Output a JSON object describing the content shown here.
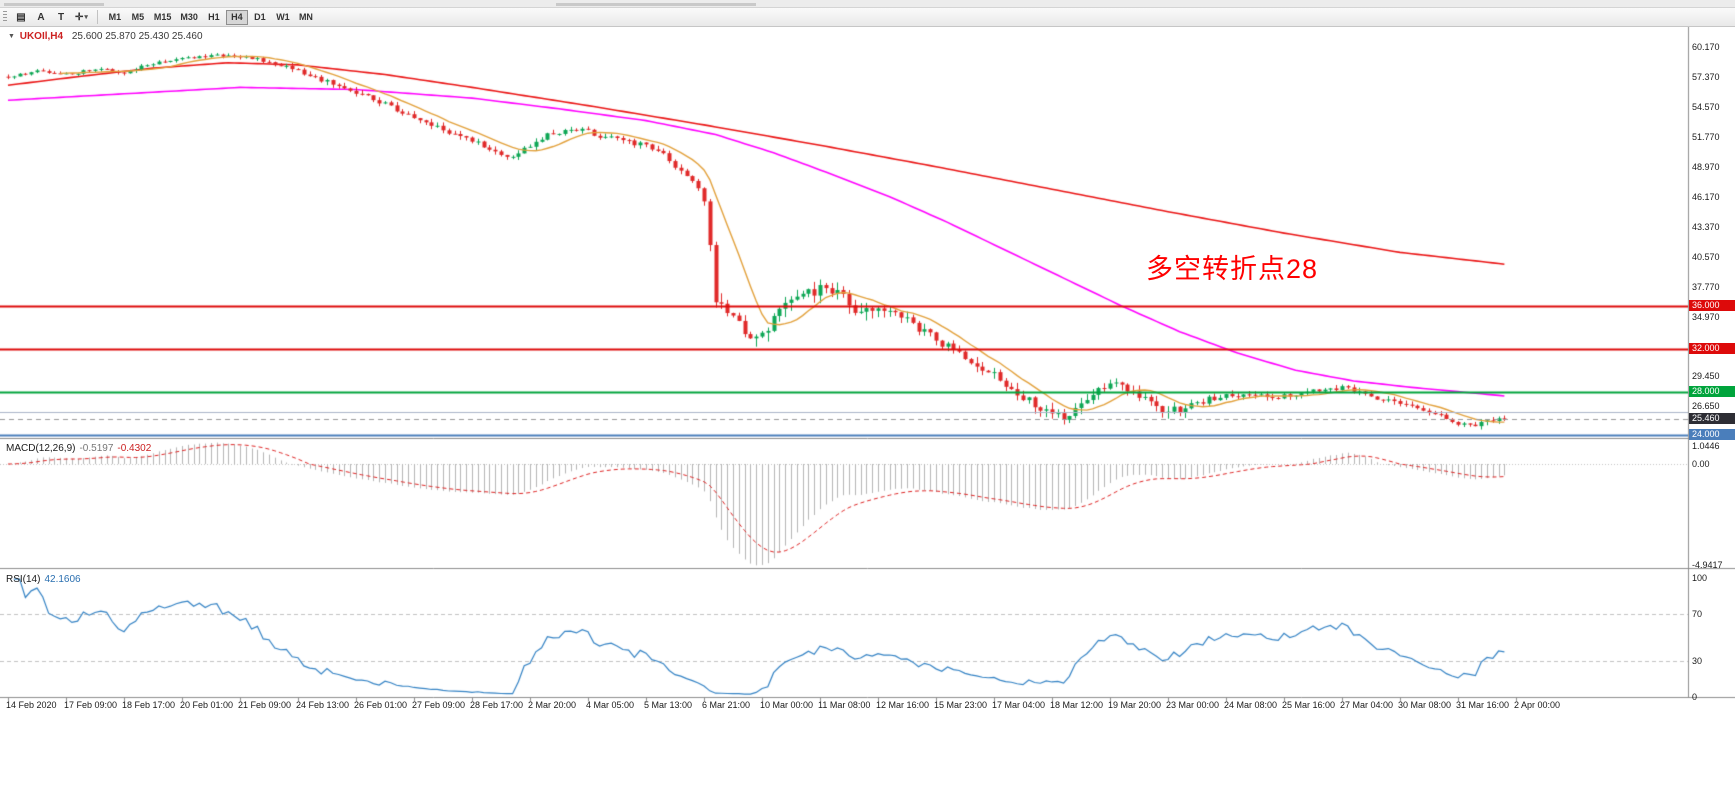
{
  "toolbar": {
    "grid_icon": "▤",
    "text_tool": "A",
    "t_tool": "T",
    "crosshair_icon": "✛",
    "dropdown_icon": "▾",
    "timeframes": [
      {
        "label": "M1",
        "active": false
      },
      {
        "label": "M5",
        "active": false
      },
      {
        "label": "M15",
        "active": false
      },
      {
        "label": "M30",
        "active": false
      },
      {
        "label": "H1",
        "active": false
      },
      {
        "label": "H4",
        "active": true
      },
      {
        "label": "D1",
        "active": false
      },
      {
        "label": "W1",
        "active": false
      },
      {
        "label": "MN",
        "active": false
      }
    ]
  },
  "chart": {
    "header": {
      "marker": "▼",
      "symbol": "UKOIl,H4",
      "ohlc": "25.600 25.870 25.430 25.460"
    },
    "annotation": {
      "text": "多空转折点28",
      "color": "#ff0000"
    },
    "price_scale": {
      "labels": [
        "60.170",
        "57.370",
        "54.570",
        "51.770",
        "48.970",
        "46.170",
        "43.370",
        "40.570",
        "37.770",
        "34.970",
        "29.450",
        "26.650"
      ],
      "badges": [
        {
          "text": "36.000",
          "price": 36.0,
          "bg": "#dd0a0a",
          "draggable": true
        },
        {
          "text": "32.000",
          "price": 32.0,
          "bg": "#dd0a0a",
          "draggable": true
        },
        {
          "text": "28.000",
          "price": 28.0,
          "bg": "#00a43c",
          "draggable": true
        },
        {
          "text": "25.460",
          "price": 25.46,
          "bg": "#2d2d34",
          "draggable": false
        },
        {
          "text": "24.000",
          "price": 24.0,
          "bg": "#4a7ebb",
          "draggable": true
        }
      ]
    },
    "macd": {
      "label": "MACD(12,26,9)",
      "value_main": "-0.5197",
      "value_signal": "-0.4302",
      "scale": [
        "1.0446",
        "0.00",
        "-4.9417"
      ]
    },
    "rsi": {
      "label": "RSI(14)",
      "value": "42.1606",
      "scale": [
        "100",
        "70",
        "30",
        "0"
      ]
    },
    "time_axis": {
      "labels": [
        "14 Feb 2020",
        "17 Feb 09:00",
        "18 Feb 17:00",
        "20 Feb 01:00",
        "21 Feb 09:00",
        "24 Feb 13:00",
        "26 Feb 01:00",
        "27 Feb 09:00",
        "28 Feb 17:00",
        "2 Mar 20:00",
        "4 Mar 05:00",
        "5 Mar 13:00",
        "6 Mar 21:00",
        "10 Mar 00:00",
        "11 Mar 08:00",
        "12 Mar 16:00",
        "15 Mar 23:00",
        "17 Mar 04:00",
        "18 Mar 12:00",
        "19 Mar 20:00",
        "23 Mar 00:00",
        "24 Mar 08:00",
        "25 Mar 16:00",
        "27 Mar 04:00",
        "30 Mar 08:00",
        "31 Mar 16:00",
        "2 Apr 00:00"
      ]
    }
  },
  "chart_data": {
    "type": "candlestick",
    "symbol": "UKOIl",
    "timeframe": "H4",
    "title": "UKOIl H4 crude oil chart with MA overlays, MACD(12,26,9) and RSI(14)",
    "current_ohlc": {
      "open": 25.6,
      "high": 25.87,
      "low": 25.43,
      "close": 25.46
    },
    "visible_price_range": [
      23.77,
      62.03
    ],
    "bars": 259,
    "last_close": 25.46,
    "time_labels_every_bars": 10,
    "colors": {
      "up": "#0ea755",
      "down": "#e02a2a",
      "ma_fast": "#e2a13c",
      "ma_mid": "#ff00ff",
      "ma_slow": "#ea1515",
      "macd_hist": "#b4b4b4",
      "macd_signal": "#dd2222",
      "rsi": "#3382c4",
      "bid_line": "#999999",
      "grid_level_red": "#dd0a0a",
      "grid_level_green": "#00a43c",
      "grid_level_blue": "#4a7ebb"
    },
    "price_path_anchors": [
      [
        0,
        57.4
      ],
      [
        5,
        57.9
      ],
      [
        10,
        57.6
      ],
      [
        15,
        58.1
      ],
      [
        20,
        57.8
      ],
      [
        24,
        58.5
      ],
      [
        28,
        58.9
      ],
      [
        33,
        59.2
      ],
      [
        38,
        59.45
      ],
      [
        43,
        59.0
      ],
      [
        48,
        58.2
      ],
      [
        53,
        57.3
      ],
      [
        58,
        56.3
      ],
      [
        63,
        55.3
      ],
      [
        68,
        54.0
      ],
      [
        73,
        52.8
      ],
      [
        79,
        51.8
      ],
      [
        84,
        50.2
      ],
      [
        87,
        49.7
      ],
      [
        90,
        51.0
      ],
      [
        94,
        52.2
      ],
      [
        99,
        52.4
      ],
      [
        104,
        51.6
      ],
      [
        109,
        51.1
      ],
      [
        113,
        50.2
      ],
      [
        117,
        48.3
      ],
      [
        120,
        46.0
      ],
      [
        122,
        36.4
      ],
      [
        125,
        34.6
      ],
      [
        128,
        33.0
      ],
      [
        131,
        34.0
      ],
      [
        134,
        35.9
      ],
      [
        138,
        37.3
      ],
      [
        141,
        37.9
      ],
      [
        144,
        36.7
      ],
      [
        147,
        35.3
      ],
      [
        151,
        35.9
      ],
      [
        155,
        34.7
      ],
      [
        159,
        33.3
      ],
      [
        163,
        31.8
      ],
      [
        167,
        30.3
      ],
      [
        171,
        29.2
      ],
      [
        175,
        27.6
      ],
      [
        179,
        26.0
      ],
      [
        182,
        25.6
      ],
      [
        185,
        26.6
      ],
      [
        188,
        28.2
      ],
      [
        191,
        29.1
      ],
      [
        194,
        28.0
      ],
      [
        197,
        26.8
      ],
      [
        200,
        26.2
      ],
      [
        203,
        26.6
      ],
      [
        207,
        27.3
      ],
      [
        211,
        27.7
      ],
      [
        215,
        27.9
      ],
      [
        219,
        27.4
      ],
      [
        223,
        27.9
      ],
      [
        227,
        28.3
      ],
      [
        231,
        28.3
      ],
      [
        235,
        27.5
      ],
      [
        239,
        27.1
      ],
      [
        243,
        26.4
      ],
      [
        247,
        25.7
      ],
      [
        250,
        25.1
      ],
      [
        253,
        24.9
      ],
      [
        255,
        25.4
      ],
      [
        258,
        25.46
      ]
    ],
    "volatility_profile": [
      [
        0,
        0.3
      ],
      [
        48,
        0.5
      ],
      [
        113,
        0.8
      ],
      [
        121,
        1.2
      ],
      [
        150,
        0.9
      ],
      [
        205,
        0.55
      ],
      [
        243,
        0.45
      ]
    ],
    "ma_fast_period": 10,
    "ma_mid_anchors": [
      [
        0,
        55.2
      ],
      [
        20,
        55.8
      ],
      [
        40,
        56.4
      ],
      [
        60,
        56.2
      ],
      [
        80,
        55.4
      ],
      [
        95,
        54.4
      ],
      [
        110,
        53.3
      ],
      [
        122,
        52.0
      ],
      [
        132,
        50.3
      ],
      [
        142,
        48.3
      ],
      [
        152,
        46.2
      ],
      [
        162,
        43.8
      ],
      [
        172,
        41.2
      ],
      [
        182,
        38.6
      ],
      [
        192,
        36.0
      ],
      [
        202,
        33.6
      ],
      [
        212,
        31.6
      ],
      [
        222,
        30.0
      ],
      [
        232,
        29.0
      ],
      [
        242,
        28.4
      ],
      [
        250,
        28.0
      ],
      [
        258,
        27.6
      ]
    ],
    "ma_slow_anchors": [
      [
        0,
        56.6
      ],
      [
        12,
        57.4
      ],
      [
        25,
        58.2
      ],
      [
        38,
        58.7
      ],
      [
        50,
        58.5
      ],
      [
        65,
        57.6
      ],
      [
        80,
        56.4
      ],
      [
        100,
        54.7
      ],
      [
        120,
        52.9
      ],
      [
        140,
        51.0
      ],
      [
        160,
        49.0
      ],
      [
        180,
        46.9
      ],
      [
        200,
        44.8
      ],
      [
        220,
        42.8
      ],
      [
        240,
        41.0
      ],
      [
        258,
        39.9
      ]
    ],
    "horizontal_levels": [
      {
        "price": 36.0,
        "color": "#dd0a0a",
        "width": 2,
        "dash": false
      },
      {
        "price": 32.0,
        "color": "#dd0a0a",
        "width": 2,
        "dash": false
      },
      {
        "price": 28.0,
        "color": "#00a43c",
        "width": 2,
        "dash": false
      },
      {
        "price": 24.0,
        "color": "#4a7ebb",
        "width": 2,
        "dash": false
      },
      {
        "price": 26.1,
        "color": "#aab4c8",
        "width": 1,
        "dash": false
      },
      {
        "price": 25.46,
        "color": "#999999",
        "width": 1,
        "dash": true
      }
    ],
    "macd": {
      "fast": 12,
      "slow": 26,
      "signal": 9,
      "main_value": -0.5197,
      "signal_value": -0.4302,
      "scale_max": 1.0446,
      "scale_min": -4.9417
    },
    "rsi": {
      "period": 14,
      "value": 42.1606,
      "levels": [
        70,
        30
      ]
    }
  }
}
